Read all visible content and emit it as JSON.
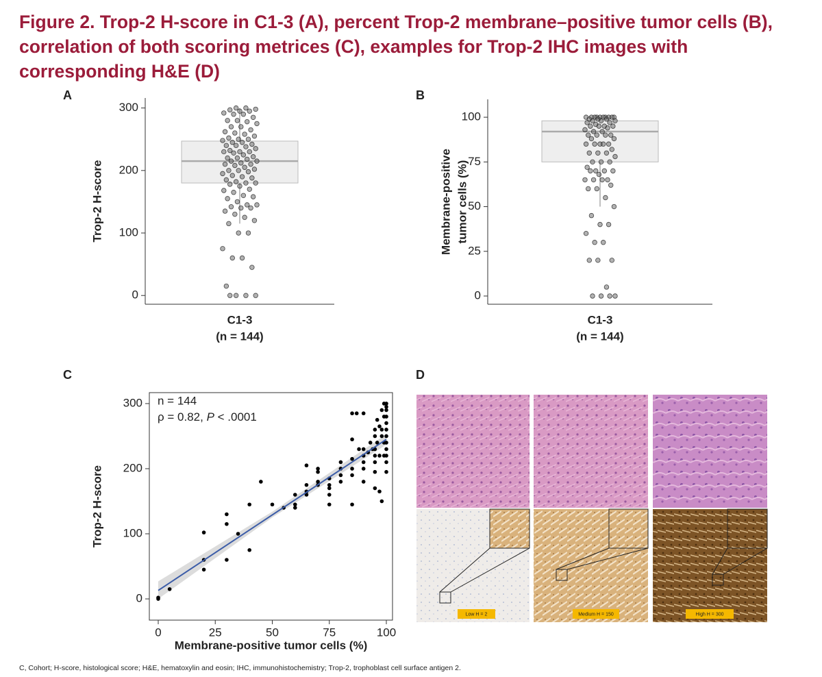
{
  "figure_title": "Figure 2. Trop-2 H-score in C1-3 (A), percent Trop-2 membrane–positive tumor cells (B), correlation of both scoring metrices (C), examples for Trop-2 IHC images with corresponding H&E (D)",
  "chart_data": [
    {
      "type": "box",
      "panel": "A",
      "ylabel": "Trop-2 H-score",
      "category": "C1-3",
      "n_label": "(n = 144)",
      "ylim": [
        -14,
        316
      ],
      "yticks": [
        0,
        100,
        200,
        300
      ],
      "box": {
        "q1": 180,
        "median": 215,
        "q3": 247,
        "whisker_low": 115,
        "whisker_high": 300
      },
      "box_color": "#eeeeee",
      "point_color": "#555555",
      "values": [
        300,
        300,
        298,
        297,
        295,
        295,
        292,
        290,
        290,
        285,
        280,
        280,
        278,
        275,
        270,
        270,
        265,
        262,
        260,
        258,
        255,
        252,
        250,
        250,
        248,
        245,
        245,
        242,
        240,
        240,
        238,
        235,
        232,
        230,
        230,
        230,
        228,
        225,
        222,
        220,
        220,
        218,
        215,
        215,
        212,
        210,
        210,
        208,
        205,
        202,
        200,
        200,
        198,
        195,
        192,
        190,
        188,
        185,
        182,
        180,
        180,
        178,
        175,
        170,
        168,
        165,
        160,
        158,
        155,
        150,
        145,
        145,
        142,
        140,
        140,
        135,
        130,
        125,
        120,
        115,
        100,
        100,
        75,
        60,
        60,
        45,
        15,
        0,
        0,
        0,
        0
      ]
    },
    {
      "type": "box",
      "panel": "B",
      "ylabel": [
        "Membrane-positive",
        "tumor cells (%)"
      ],
      "category": "C1-3",
      "n_label": "(n = 144)",
      "ylim": [
        -4.6,
        110
      ],
      "yticks": [
        0,
        25,
        50,
        75,
        100
      ],
      "box": {
        "q1": 75,
        "median": 92,
        "q3": 98,
        "whisker_low": 50,
        "whisker_high": 100
      },
      "box_color": "#eeeeee",
      "point_color": "#555555",
      "values": [
        100,
        100,
        100,
        100,
        100,
        100,
        100,
        100,
        100,
        100,
        99,
        99,
        99,
        98,
        98,
        98,
        97,
        97,
        96,
        95,
        95,
        95,
        95,
        94,
        93,
        92,
        92,
        90,
        90,
        90,
        90,
        88,
        88,
        85,
        85,
        85,
        85,
        85,
        82,
        80,
        80,
        80,
        78,
        75,
        75,
        75,
        72,
        70,
        70,
        70,
        70,
        68,
        65,
        65,
        65,
        65,
        62,
        60,
        60,
        55,
        50,
        45,
        40,
        40,
        35,
        30,
        30,
        20,
        20,
        20,
        5,
        0,
        0,
        0,
        0
      ]
    },
    {
      "type": "scatter",
      "panel": "C",
      "xlabel": "Membrane-positive tumor cells (%)",
      "ylabel": "Trop-2 H-score",
      "xlim": [
        -3.9,
        102.7
      ],
      "ylim": [
        -32.6,
        316.8
      ],
      "xticks": [
        0,
        25,
        50,
        75,
        100
      ],
      "yticks": [
        0,
        100,
        200,
        300
      ],
      "frame": true,
      "annotation": {
        "n": "n = 144",
        "rho": "ρ = 0.82, ",
        "p_symbol": "P",
        "p_value": " < .0001"
      },
      "series": [
        {
          "color": "#000000",
          "x": [
            0,
            0,
            5,
            20,
            20,
            20,
            30,
            30,
            30,
            35,
            40,
            40,
            45,
            50,
            55,
            60,
            60,
            60,
            65,
            65,
            65,
            65,
            70,
            70,
            70,
            70,
            75,
            75,
            75,
            75,
            75,
            80,
            80,
            80,
            80,
            85,
            85,
            85,
            85,
            85,
            85,
            87,
            88,
            90,
            90,
            90,
            90,
            90,
            90,
            92,
            93,
            94,
            95,
            95,
            95,
            95,
            95,
            95,
            95,
            96,
            96,
            97,
            97,
            97,
            98,
            98,
            98,
            98,
            99,
            99,
            99,
            99,
            100,
            100,
            100,
            100,
            100,
            100,
            100,
            100,
            100,
            100,
            100,
            100
          ],
          "y": [
            0,
            2,
            15,
            102,
            60,
            45,
            130,
            115,
            60,
            100,
            145,
            75,
            180,
            145,
            140,
            145,
            140,
            160,
            205,
            175,
            165,
            160,
            200,
            195,
            180,
            175,
            185,
            175,
            170,
            160,
            145,
            210,
            200,
            190,
            180,
            285,
            245,
            215,
            200,
            190,
            145,
            285,
            230,
            285,
            230,
            220,
            210,
            200,
            180,
            225,
            240,
            230,
            260,
            250,
            230,
            220,
            210,
            195,
            170,
            275,
            240,
            265,
            220,
            165,
            290,
            260,
            250,
            150,
            300,
            280,
            240,
            220,
            300,
            295,
            290,
            280,
            270,
            260,
            250,
            240,
            230,
            220,
            210,
            195
          ]
        }
      ],
      "regression": {
        "color": "#3b5ca8",
        "x": [
          0,
          100
        ],
        "y": [
          13,
          245
        ]
      },
      "band": {
        "color": "#dcdcdc",
        "x": [
          0,
          50,
          100
        ],
        "lower": [
          0,
          125,
          237
        ],
        "upper": [
          27,
          134,
          253
        ]
      }
    }
  ],
  "panel_d": {
    "panel": "D",
    "images": [
      {
        "label": "Low H = 2"
      },
      {
        "label": "Medium H = 150"
      },
      {
        "label": "High H = 300"
      }
    ]
  },
  "footnote": "C, Cohort; H-score, histological score; H&E, hematoxylin and eosin; IHC, immunohistochemistry; Trop-2, trophoblast cell surface antigen 2."
}
